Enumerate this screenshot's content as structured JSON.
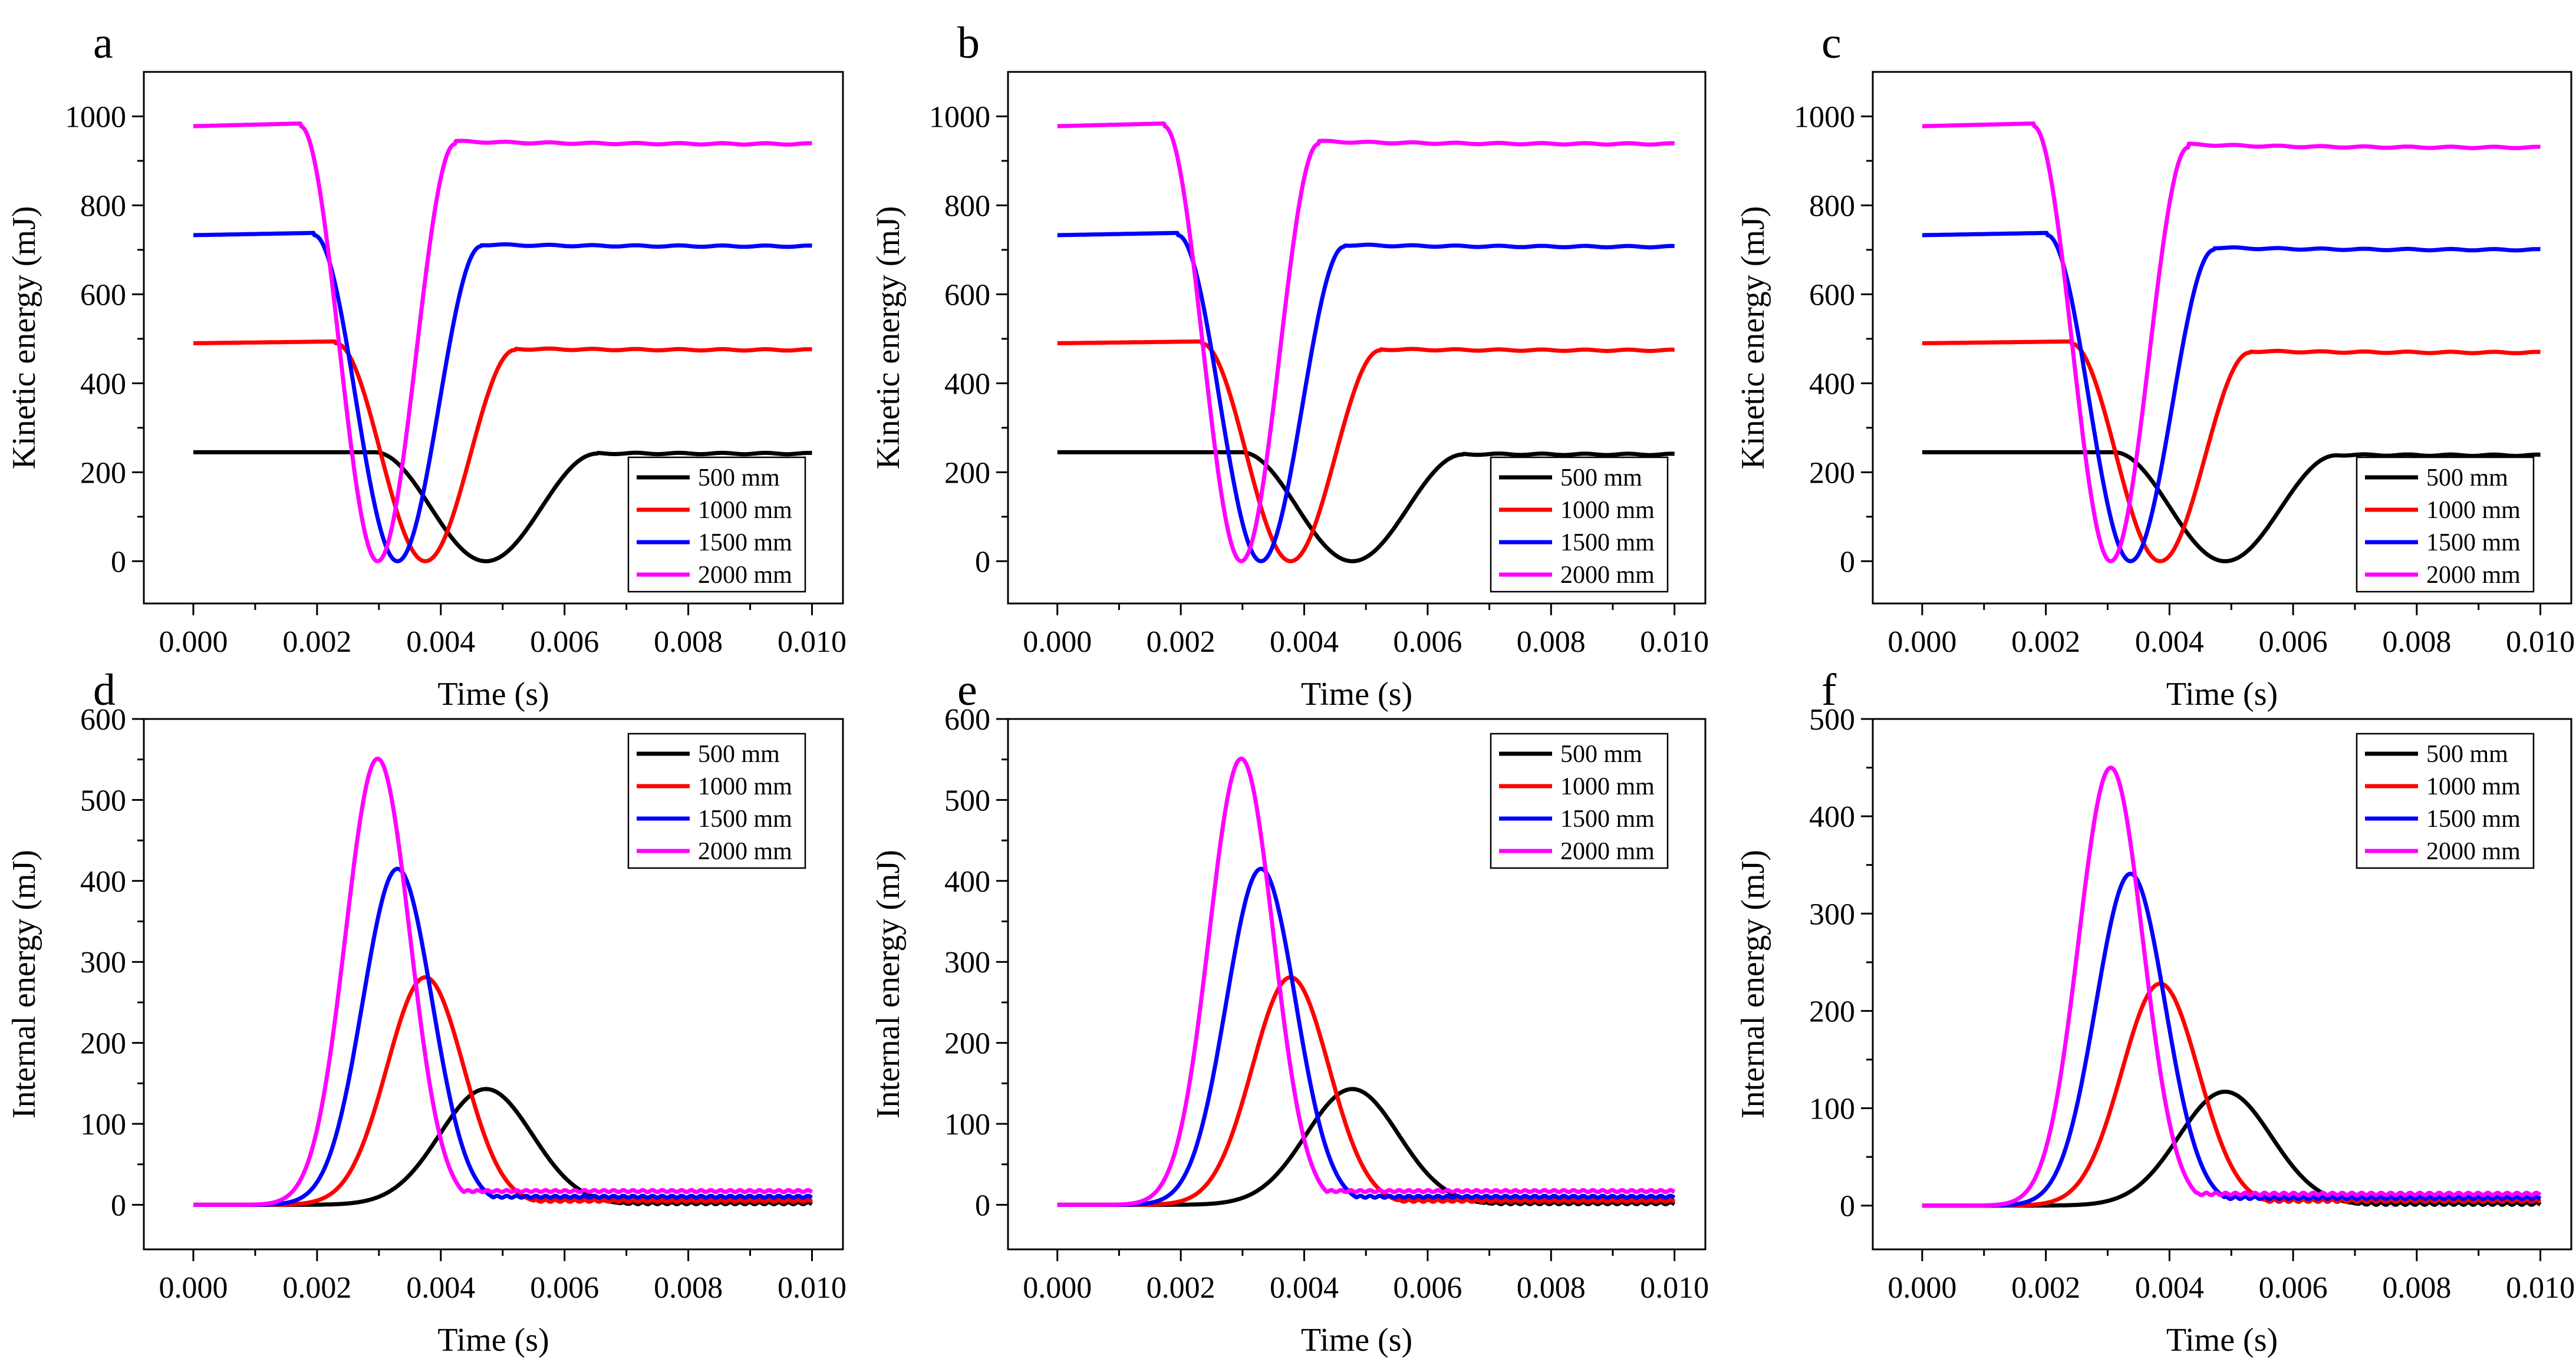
{
  "chart_data": [
    {
      "panel": "a",
      "type": "line",
      "xlabel": "Time (s)",
      "ylabel": "Kinetic energy (mJ)",
      "xlim": [
        -0.0008,
        0.0105
      ],
      "ylim": [
        -95,
        1100
      ],
      "xticks": [
        "0.000",
        "0.002",
        "0.004",
        "0.006",
        "0.008",
        "0.010"
      ],
      "yticks": [
        "0",
        "200",
        "400",
        "600",
        "800",
        "1000"
      ],
      "legend": "bottom-right",
      "series": [
        {
          "name": "500  mm",
          "color": "#000000",
          "profile": "dip",
          "v0": 245,
          "vend": 242,
          "tmid": 0.00473,
          "halfw": 0.0018,
          "rise": 0
        },
        {
          "name": "1000 mm",
          "color": "#ff0000",
          "profile": "dip",
          "v0": 490,
          "vend": 475,
          "tmid": 0.00375,
          "halfw": 0.00145,
          "rise": 4
        },
        {
          "name": "1500 mm",
          "color": "#0000ff",
          "profile": "dip",
          "v0": 733,
          "vend": 708,
          "tmid": 0.0033,
          "halfw": 0.00135,
          "rise": 5
        },
        {
          "name": "2000 mm",
          "color": "#ff00ff",
          "profile": "dip",
          "v0": 978,
          "vend": 938,
          "tmid": 0.00298,
          "halfw": 0.00125,
          "rise": 6
        }
      ]
    },
    {
      "panel": "b",
      "type": "line",
      "xlabel": "Time (s)",
      "ylabel": "Kinetic energy (mJ)",
      "xlim": [
        -0.0008,
        0.0105
      ],
      "ylim": [
        -95,
        1100
      ],
      "xticks": [
        "0.000",
        "0.002",
        "0.004",
        "0.006",
        "0.008",
        "0.010"
      ],
      "yticks": [
        "0",
        "200",
        "400",
        "600",
        "800",
        "1000"
      ],
      "legend": "bottom-right",
      "series": [
        {
          "name": "500  mm",
          "color": "#000000",
          "profile": "dip",
          "v0": 245,
          "vend": 240,
          "tmid": 0.00478,
          "halfw": 0.0018,
          "rise": 0
        },
        {
          "name": "1000 mm",
          "color": "#ff0000",
          "profile": "dip",
          "v0": 490,
          "vend": 474,
          "tmid": 0.00378,
          "halfw": 0.00145,
          "rise": 4
        },
        {
          "name": "1500 mm",
          "color": "#0000ff",
          "profile": "dip",
          "v0": 733,
          "vend": 707,
          "tmid": 0.0033,
          "halfw": 0.00135,
          "rise": 5
        },
        {
          "name": "2000 mm",
          "color": "#ff00ff",
          "profile": "dip",
          "v0": 978,
          "vend": 938,
          "tmid": 0.00298,
          "halfw": 0.00125,
          "rise": 6
        }
      ]
    },
    {
      "panel": "c",
      "type": "line",
      "xlabel": "Time (s)",
      "ylabel": "Kinetic energy (mJ)",
      "xlim": [
        -0.0008,
        0.0105
      ],
      "ylim": [
        -95,
        1100
      ],
      "xticks": [
        "0.000",
        "0.002",
        "0.004",
        "0.006",
        "0.008",
        "0.010"
      ],
      "yticks": [
        "0",
        "200",
        "400",
        "600",
        "800",
        "1000"
      ],
      "legend": "bottom-right",
      "series": [
        {
          "name": "500  mm",
          "color": "#000000",
          "profile": "dip",
          "v0": 245,
          "vend": 238,
          "tmid": 0.0049,
          "halfw": 0.0018,
          "rise": 0
        },
        {
          "name": "1000 mm",
          "color": "#ff0000",
          "profile": "dip",
          "v0": 490,
          "vend": 469,
          "tmid": 0.00385,
          "halfw": 0.00145,
          "rise": 4
        },
        {
          "name": "1500 mm",
          "color": "#0000ff",
          "profile": "dip",
          "v0": 733,
          "vend": 700,
          "tmid": 0.00337,
          "halfw": 0.00135,
          "rise": 5
        },
        {
          "name": "2000 mm",
          "color": "#ff00ff",
          "profile": "dip",
          "v0": 978,
          "vend": 930,
          "tmid": 0.00305,
          "halfw": 0.00125,
          "rise": 6
        }
      ]
    },
    {
      "panel": "d",
      "type": "line",
      "xlabel": "Time (s)",
      "ylabel": "Internal energy (mJ)",
      "xlim": [
        -0.0008,
        0.0105
      ],
      "ylim": [
        -55,
        600
      ],
      "xticks": [
        "0.000",
        "0.002",
        "0.004",
        "0.006",
        "0.008",
        "0.010"
      ],
      "yticks": [
        "0",
        "100",
        "200",
        "300",
        "400",
        "500",
        "600"
      ],
      "legend": "top-right",
      "series": [
        {
          "name": "500  mm",
          "color": "#000000",
          "profile": "peak",
          "peak": 143,
          "tpeak": 0.00473,
          "sigma": 0.00075,
          "resid": 2
        },
        {
          "name": "1000 mm",
          "color": "#ff0000",
          "profile": "peak",
          "peak": 281,
          "tpeak": 0.00375,
          "sigma": 0.00062,
          "resid": 5
        },
        {
          "name": "1500 mm",
          "color": "#0000ff",
          "profile": "peak",
          "peak": 415,
          "tpeak": 0.0033,
          "sigma": 0.00056,
          "resid": 10
        },
        {
          "name": "2000 mm",
          "color": "#ff00ff",
          "profile": "peak",
          "peak": 551,
          "tpeak": 0.00298,
          "sigma": 0.00052,
          "resid": 17
        }
      ]
    },
    {
      "panel": "e",
      "type": "line",
      "xlabel": "Time (s)",
      "ylabel": "Internal energy (mJ)",
      "xlim": [
        -0.0008,
        0.0105
      ],
      "ylim": [
        -55,
        600
      ],
      "xticks": [
        "0.000",
        "0.002",
        "0.004",
        "0.006",
        "0.008",
        "0.010"
      ],
      "yticks": [
        "0",
        "100",
        "200",
        "300",
        "400",
        "500",
        "600"
      ],
      "legend": "top-right",
      "series": [
        {
          "name": "500  mm",
          "color": "#000000",
          "profile": "peak",
          "peak": 143,
          "tpeak": 0.00478,
          "sigma": 0.00075,
          "resid": 2
        },
        {
          "name": "1000 mm",
          "color": "#ff0000",
          "profile": "peak",
          "peak": 281,
          "tpeak": 0.00378,
          "sigma": 0.00062,
          "resid": 5
        },
        {
          "name": "1500 mm",
          "color": "#0000ff",
          "profile": "peak",
          "peak": 415,
          "tpeak": 0.0033,
          "sigma": 0.00056,
          "resid": 10
        },
        {
          "name": "2000 mm",
          "color": "#ff00ff",
          "profile": "peak",
          "peak": 551,
          "tpeak": 0.00298,
          "sigma": 0.00052,
          "resid": 17
        }
      ]
    },
    {
      "panel": "f",
      "type": "line",
      "xlabel": "Time (s)",
      "ylabel": "Internal energy (mJ)",
      "xlim": [
        -0.0008,
        0.0105
      ],
      "ylim": [
        -45,
        500
      ],
      "xticks": [
        "0.000",
        "0.002",
        "0.004",
        "0.006",
        "0.008",
        "0.010"
      ],
      "yticks": [
        "0",
        "100",
        "200",
        "300",
        "400",
        "500"
      ],
      "legend": "top-right",
      "series": [
        {
          "name": "500  mm",
          "color": "#000000",
          "profile": "peak",
          "peak": 117,
          "tpeak": 0.0049,
          "sigma": 0.00075,
          "resid": 2
        },
        {
          "name": "1000 mm",
          "color": "#ff0000",
          "profile": "peak",
          "peak": 228,
          "tpeak": 0.00385,
          "sigma": 0.00062,
          "resid": 5
        },
        {
          "name": "1500 mm",
          "color": "#0000ff",
          "profile": "peak",
          "peak": 341,
          "tpeak": 0.00337,
          "sigma": 0.00056,
          "resid": 8
        },
        {
          "name": "2000 mm",
          "color": "#ff00ff",
          "profile": "peak",
          "peak": 450,
          "tpeak": 0.00305,
          "sigma": 0.00052,
          "resid": 12
        }
      ]
    }
  ]
}
